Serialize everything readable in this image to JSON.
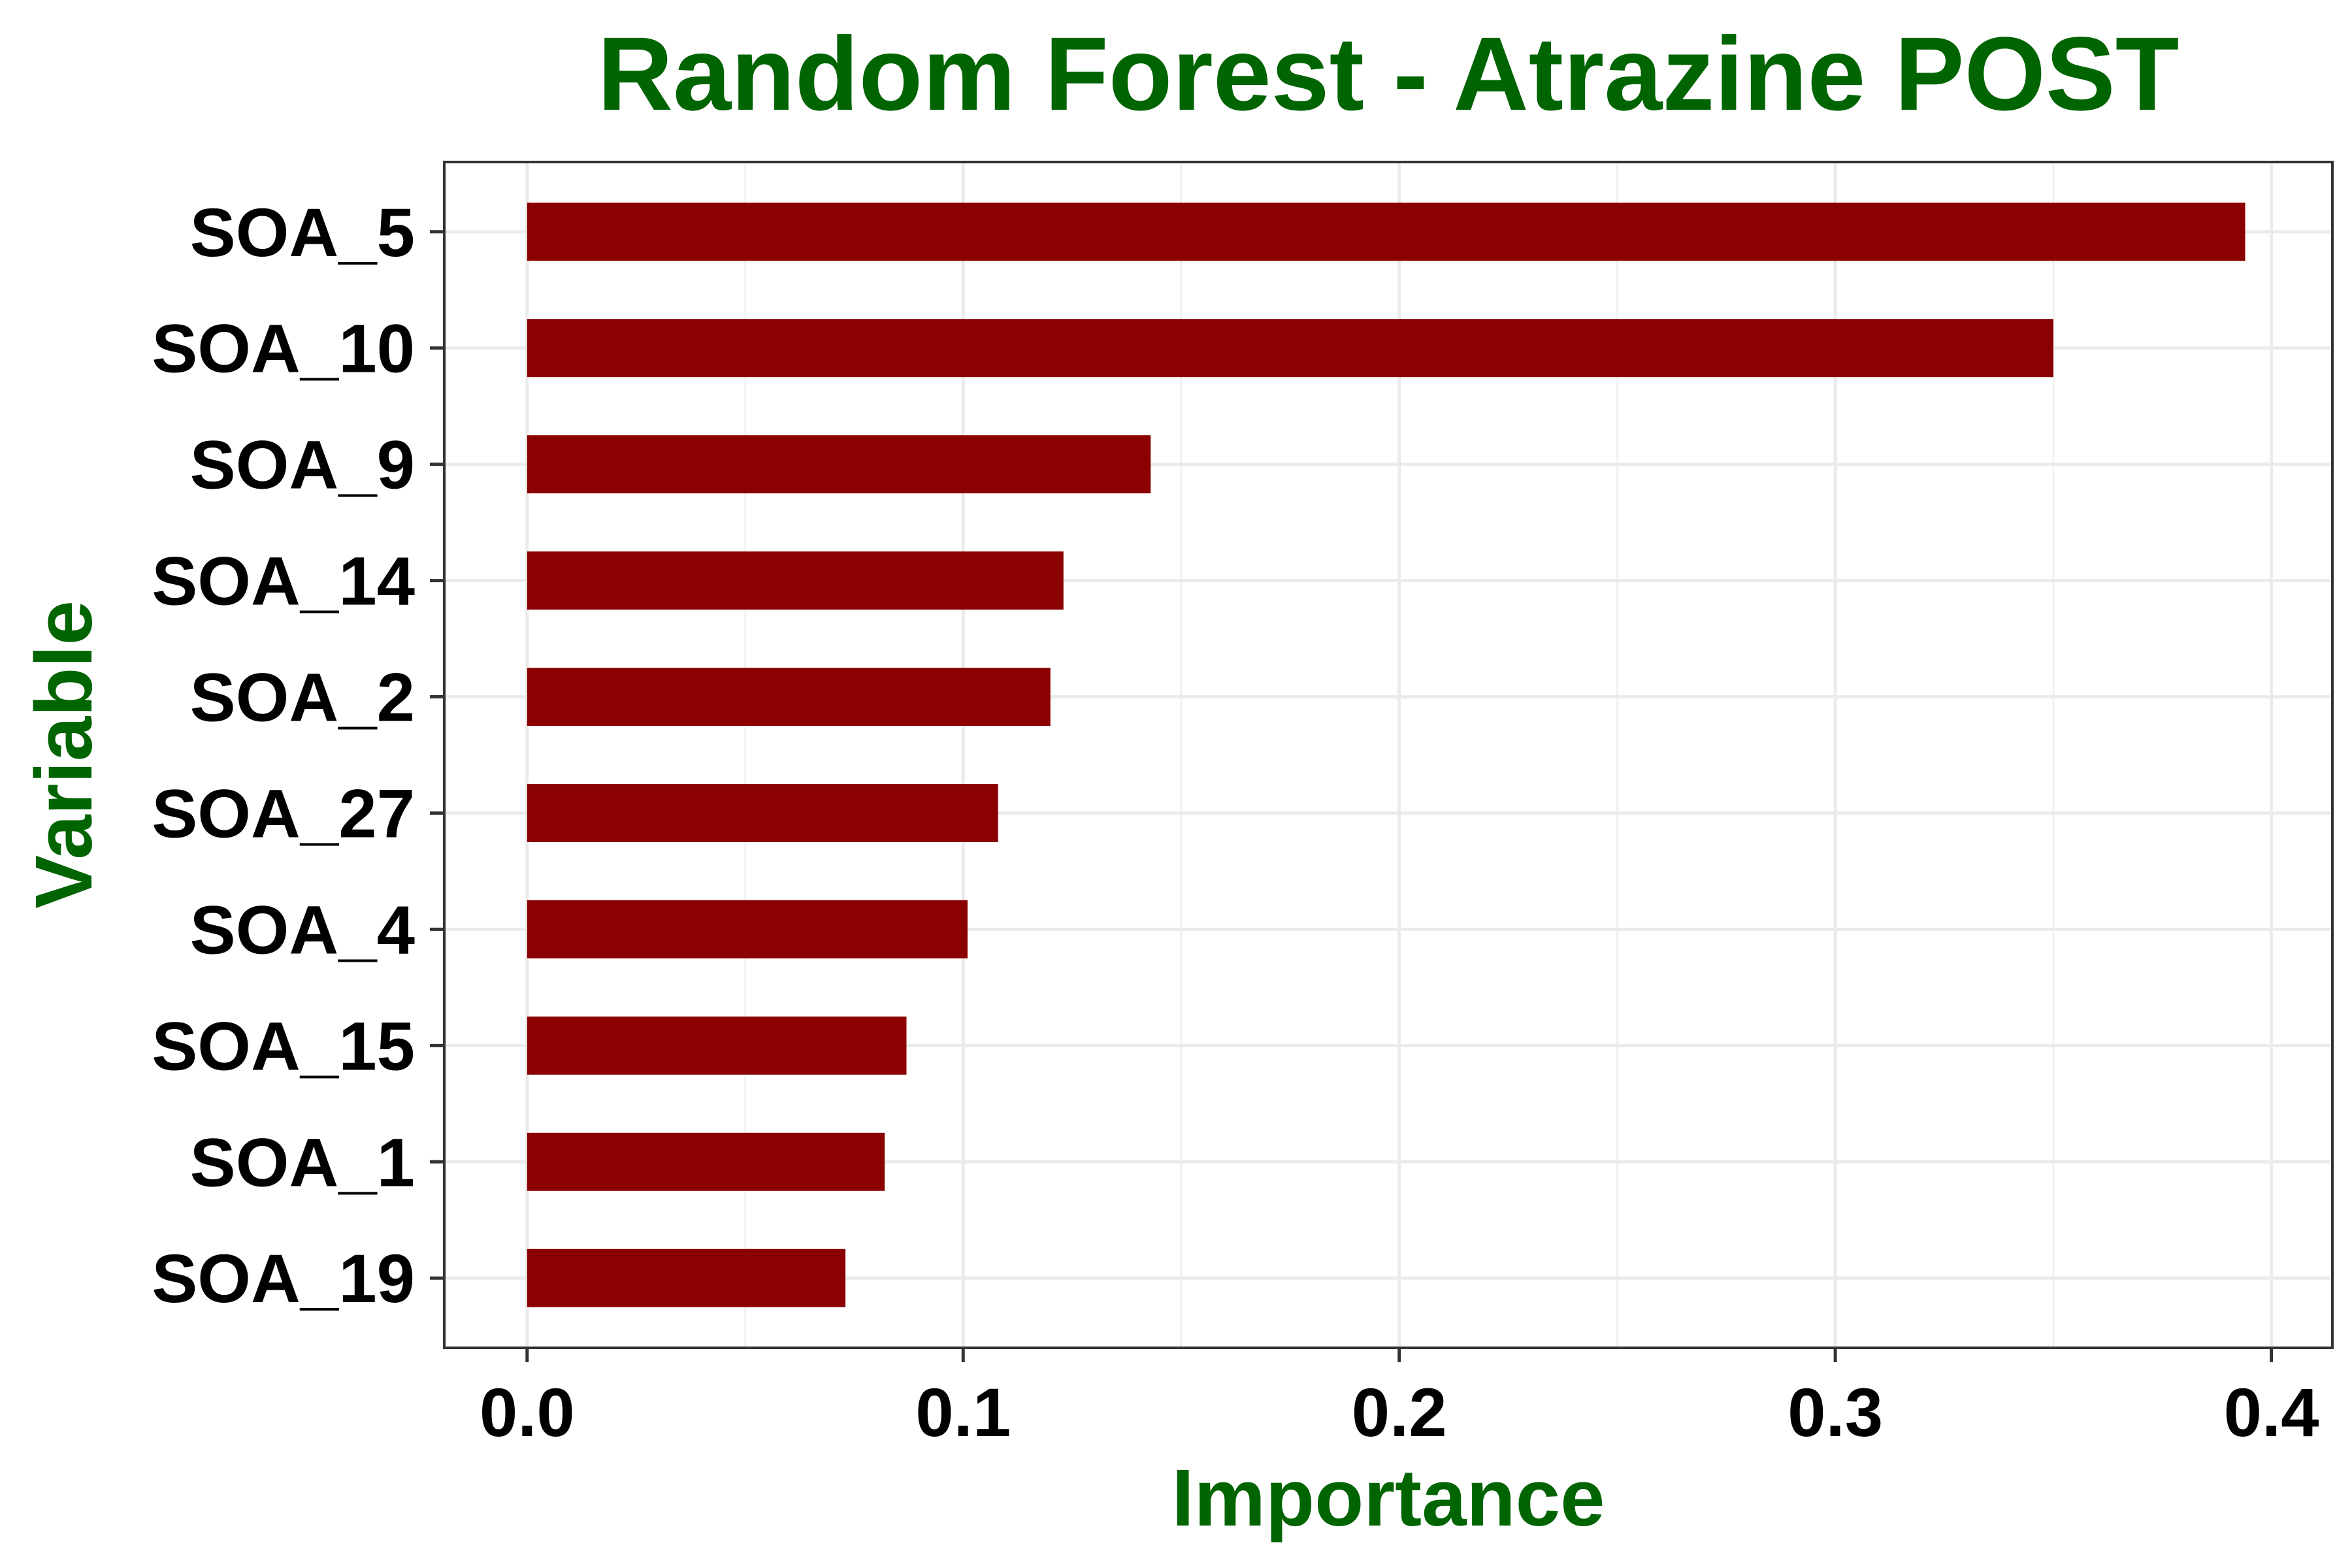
{
  "chart_data": {
    "type": "bar",
    "orientation": "horizontal",
    "title": "Random Forest - Atrazine POST",
    "xlabel": "Importance",
    "ylabel": "Variable",
    "categories": [
      "SOA_5",
      "SOA_10",
      "SOA_9",
      "SOA_14",
      "SOA_2",
      "SOA_27",
      "SOA_4",
      "SOA_15",
      "SOA_1",
      "SOA_19"
    ],
    "values": [
      0.394,
      0.35,
      0.143,
      0.123,
      0.12,
      0.108,
      0.101,
      0.087,
      0.082,
      0.073
    ],
    "xlim": [
      -0.019,
      0.414
    ],
    "x_ticks": [
      "0.0",
      "0.1",
      "0.2",
      "0.3",
      "0.4"
    ],
    "x_tick_values": [
      0.0,
      0.1,
      0.2,
      0.3,
      0.4
    ],
    "x_minor_tick_values": [
      0.05,
      0.15,
      0.25,
      0.35
    ],
    "grid": true,
    "legend": "none",
    "colors": {
      "bar": "#8B0000",
      "title": "#006400",
      "axis_title": "#006400",
      "tick_label": "#000000",
      "grid": "#EBEBEB",
      "panel_border": "#333333"
    }
  }
}
